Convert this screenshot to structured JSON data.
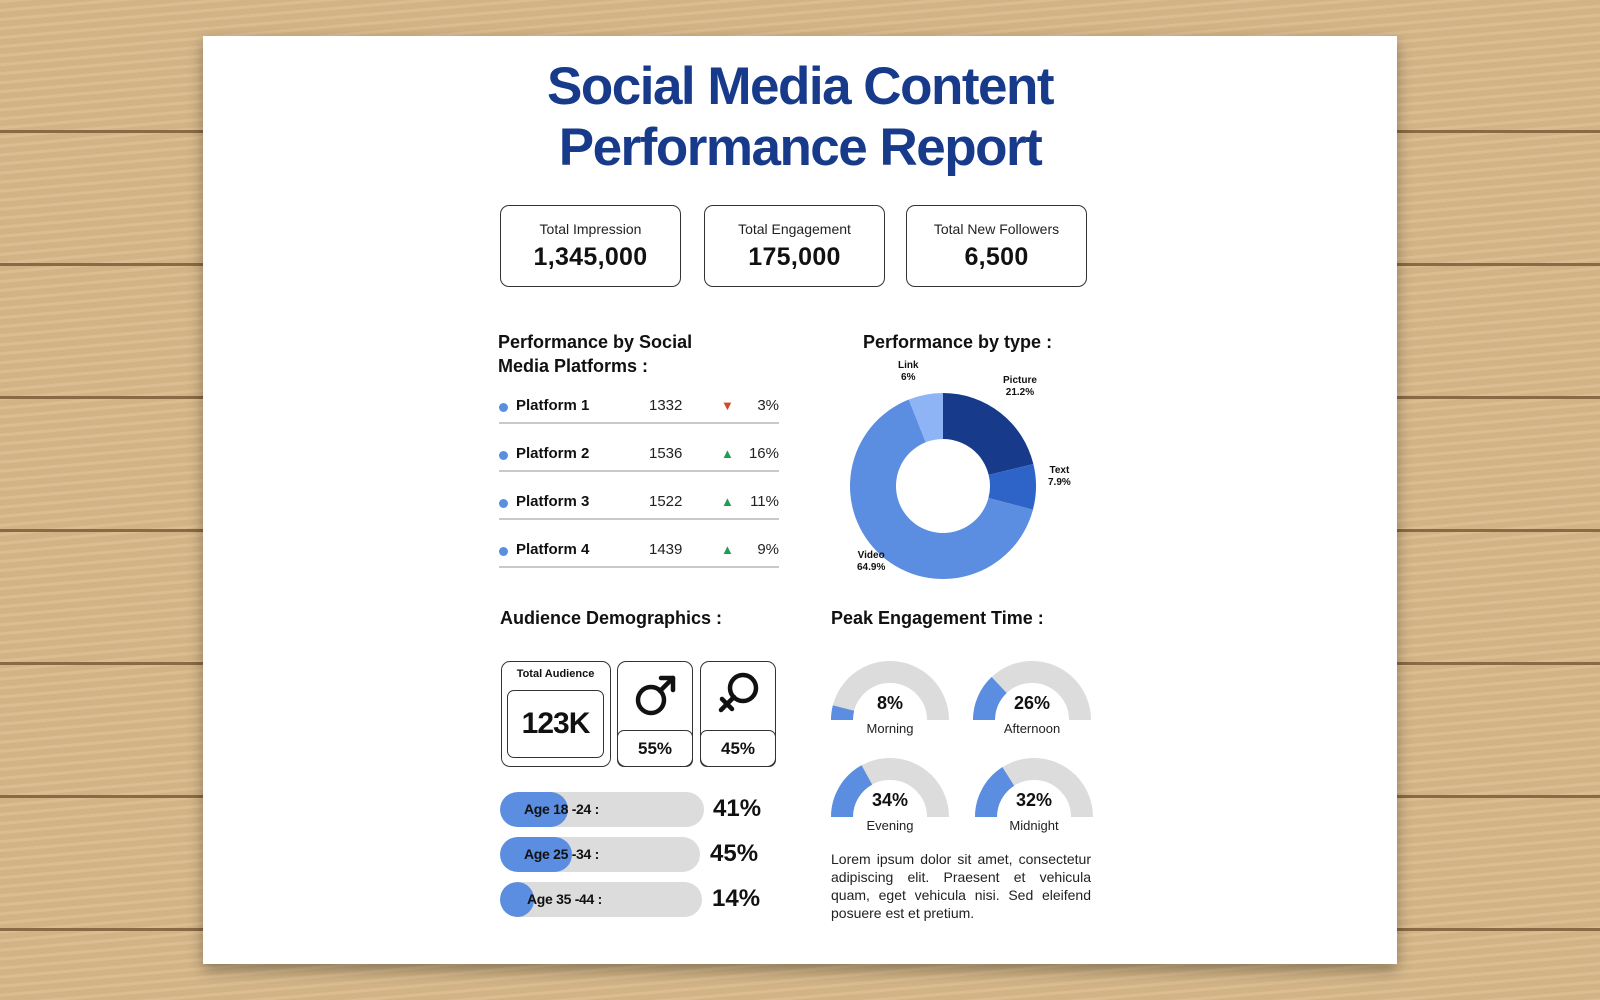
{
  "title": {
    "line1": "Social Media Content",
    "line2": "Performance Report"
  },
  "kpis": [
    {
      "label": "Total Impression",
      "value": "1,345,000"
    },
    {
      "label": "Total Engagement",
      "value": "175,000"
    },
    {
      "label": "Total New Followers",
      "value": "6,500"
    }
  ],
  "platforms": {
    "title_line1": "Performance by Social",
    "title_line2": "Media Platforms :",
    "rows": [
      {
        "name": "Platform 1",
        "value": "1332",
        "trend": "down",
        "trend_icon": "▼",
        "pct": "3%"
      },
      {
        "name": "Platform 2",
        "value": "1536",
        "trend": "up",
        "trend_icon": "▲",
        "pct": "16%"
      },
      {
        "name": "Platform 3",
        "value": "1522",
        "trend": "up",
        "trend_icon": "▲",
        "pct": "11%"
      },
      {
        "name": "Platform 4",
        "value": "1439",
        "trend": "up",
        "trend_icon": "▲",
        "pct": "9%"
      }
    ]
  },
  "chart_data": {
    "type": "pie",
    "title": "Performance by type :",
    "donut": true,
    "slices": [
      {
        "label": "Picture",
        "value": 21.2,
        "display": "21.2%",
        "color": "#173a8a"
      },
      {
        "label": "Text",
        "value": 7.9,
        "display": "7.9%",
        "color": "#2e63c8"
      },
      {
        "label": "Video",
        "value": 64.9,
        "display": "64.9%",
        "color": "#5b8de0"
      },
      {
        "label": "Link",
        "value": 6,
        "display": "6%",
        "color": "#8fb4f5"
      }
    ]
  },
  "demographics": {
    "title": "Audience Demographics :",
    "total_label": "Total Audience",
    "total_value": "123K",
    "male_icon": "male-symbol-icon",
    "male_pct": "55%",
    "female_icon": "female-symbol-icon",
    "female_pct": "45%",
    "ages": [
      {
        "label": "Age 18 -24 :",
        "pct": "41%",
        "value": 41
      },
      {
        "label": "Age 25 -34 :",
        "pct": "45%",
        "value": 45
      },
      {
        "label": "Age 35 -44 :",
        "pct": "14%",
        "value": 14
      }
    ]
  },
  "peak": {
    "title": "Peak Engagement Time :",
    "gauges": [
      {
        "name": "Morning",
        "display": "8%",
        "value": 8
      },
      {
        "name": "Afternoon",
        "display": "26%",
        "value": 26
      },
      {
        "name": "Evening",
        "display": "34%",
        "value": 34
      },
      {
        "name": "Midnight",
        "display": "32%",
        "value": 32
      }
    ],
    "body": "Lorem ipsum dolor sit amet, consectetur adipiscing elit. Praesent et vehicula quam, eget vehicula nisi. Sed eleifend posuere est et pretium."
  },
  "colors": {
    "accent": "#5b8de0",
    "title_blue": "#173a8a",
    "track_gray": "#dcdcdc",
    "up_green": "#1f9d55",
    "down_red": "#d9452b"
  }
}
